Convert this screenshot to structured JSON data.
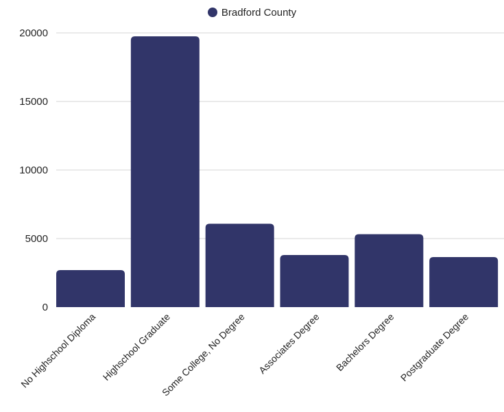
{
  "chart_data": {
    "type": "bar",
    "categories": [
      "No Highschool Diploma",
      "Highschool Graduate",
      "Some College, No Degree",
      "Associates Degree",
      "Bachelors Degree",
      "Postgraduate Degree"
    ],
    "series": [
      {
        "name": "Bradford County",
        "values": [
          2700,
          19750,
          6080,
          3800,
          5320,
          3650
        ],
        "color": "#313569"
      }
    ],
    "title": "",
    "xlabel": "",
    "ylabel": "",
    "ylim": [
      0,
      20000
    ],
    "yticks": [
      0,
      5000,
      10000,
      15000,
      20000
    ],
    "grid": true,
    "legend_position": "top-center"
  }
}
